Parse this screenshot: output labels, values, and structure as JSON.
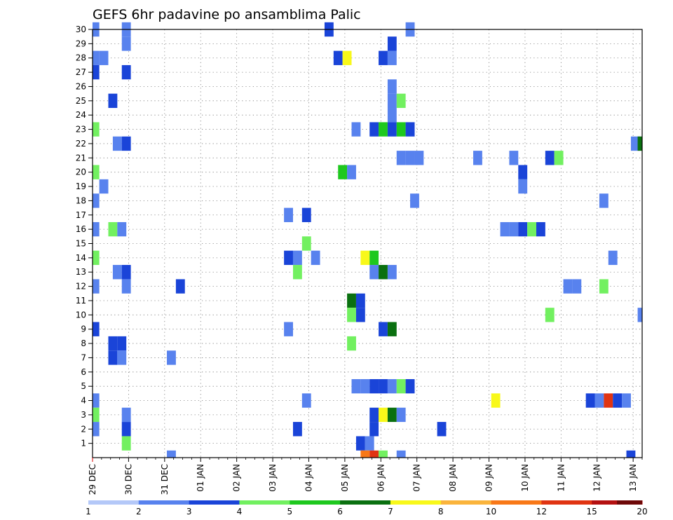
{
  "chart_data": {
    "type": "heatmap",
    "title": "GEFS 6hr padavine po ansamblima Palic",
    "y_ticks": [
      1,
      2,
      3,
      4,
      5,
      6,
      7,
      8,
      9,
      10,
      11,
      12,
      13,
      14,
      15,
      16,
      17,
      18,
      19,
      20,
      21,
      22,
      23,
      24,
      25,
      26,
      27,
      28,
      29,
      30
    ],
    "ylim": [
      0,
      30
    ],
    "x_ticks": [
      "29 DEC",
      "30 DEC",
      "31 DEC",
      "01 JAN",
      "02 JAN",
      "03 JAN",
      "04 JAN",
      "05 JAN",
      "06 JAN",
      "07 JAN",
      "08 JAN",
      "09 JAN",
      "10 JAN",
      "11 JAN",
      "12 JAN",
      "13 JAN"
    ],
    "x_unit": "6-hour steps from 29 DEC 00 UTC",
    "xlim": [
      0,
      61
    ],
    "grid": true,
    "legend": {
      "placement": "bottom",
      "labels": [
        "1",
        "2",
        "3",
        "4",
        "5",
        "6",
        "7",
        "8",
        "10",
        "12",
        "15",
        "20"
      ],
      "colors": [
        "#b4c8f8",
        "#5882ee",
        "#1a44d8",
        "#72f060",
        "#1ec81e",
        "#0a7010",
        "#f8f81a",
        "#fab43c",
        "#f87818",
        "#e03412",
        "#b41010",
        "#6e0808"
      ]
    },
    "levels_note_thresholds": [
      1,
      2,
      3,
      4,
      5,
      6,
      7,
      8,
      10,
      12,
      15,
      20
    ],
    "cells": [
      [
        0.25,
        30,
        1
      ],
      [
        3.75,
        30,
        1
      ],
      [
        26.25,
        30,
        2
      ],
      [
        35.25,
        30,
        1
      ],
      [
        3.75,
        29,
        1
      ],
      [
        33.25,
        29,
        2
      ],
      [
        0.25,
        28,
        1
      ],
      [
        1.25,
        28,
        1
      ],
      [
        27.25,
        28,
        2
      ],
      [
        28.25,
        28,
        6
      ],
      [
        32.25,
        28,
        2
      ],
      [
        33.25,
        28,
        1
      ],
      [
        0.25,
        27,
        2
      ],
      [
        3.75,
        27,
        2
      ],
      [
        33.25,
        26,
        1
      ],
      [
        2.25,
        25,
        2
      ],
      [
        33.25,
        25,
        1
      ],
      [
        34.25,
        25,
        3
      ],
      [
        33.25,
        24,
        1
      ],
      [
        0.25,
        23,
        3
      ],
      [
        29.25,
        23,
        1
      ],
      [
        31.25,
        23,
        2
      ],
      [
        32.25,
        23,
        4
      ],
      [
        33.25,
        23,
        2
      ],
      [
        34.25,
        23,
        4
      ],
      [
        35.25,
        23,
        2
      ],
      [
        2.75,
        22,
        1
      ],
      [
        3.75,
        22,
        2
      ],
      [
        60.25,
        22,
        1
      ],
      [
        61.0,
        22,
        5
      ],
      [
        34.25,
        21,
        1
      ],
      [
        35.25,
        21,
        1
      ],
      [
        36.25,
        21,
        1
      ],
      [
        42.75,
        21,
        1
      ],
      [
        46.75,
        21,
        1
      ],
      [
        50.75,
        21,
        2
      ],
      [
        51.75,
        21,
        3
      ],
      [
        0.25,
        20,
        3
      ],
      [
        27.75,
        20,
        4
      ],
      [
        28.75,
        20,
        1
      ],
      [
        47.75,
        20,
        2
      ],
      [
        1.25,
        19,
        1
      ],
      [
        47.75,
        19,
        1
      ],
      [
        0.25,
        18,
        1
      ],
      [
        35.75,
        18,
        1
      ],
      [
        56.75,
        18,
        1
      ],
      [
        21.75,
        17,
        1
      ],
      [
        23.75,
        17,
        2
      ],
      [
        0.25,
        16,
        1
      ],
      [
        2.25,
        16,
        3
      ],
      [
        3.25,
        16,
        1
      ],
      [
        45.75,
        16,
        1
      ],
      [
        46.75,
        16,
        1
      ],
      [
        47.75,
        16,
        2
      ],
      [
        48.75,
        16,
        3
      ],
      [
        49.75,
        16,
        2
      ],
      [
        23.75,
        15,
        3
      ],
      [
        0.25,
        14,
        3
      ],
      [
        21.75,
        14,
        2
      ],
      [
        22.75,
        14,
        1
      ],
      [
        24.75,
        14,
        1
      ],
      [
        30.25,
        14,
        6
      ],
      [
        31.25,
        14,
        4
      ],
      [
        57.75,
        14,
        1
      ],
      [
        2.75,
        13,
        1
      ],
      [
        3.75,
        13,
        2
      ],
      [
        22.75,
        13,
        3
      ],
      [
        31.25,
        13,
        1
      ],
      [
        32.25,
        13,
        5
      ],
      [
        33.25,
        13,
        1
      ],
      [
        0.25,
        12,
        1
      ],
      [
        3.75,
        12,
        1
      ],
      [
        9.75,
        12,
        2
      ],
      [
        52.75,
        12,
        1
      ],
      [
        53.75,
        12,
        1
      ],
      [
        56.75,
        12,
        3
      ],
      [
        28.75,
        11,
        5
      ],
      [
        29.75,
        11,
        2
      ],
      [
        28.75,
        10,
        3
      ],
      [
        29.75,
        10,
        2
      ],
      [
        50.75,
        10,
        3
      ],
      [
        61.0,
        10,
        1
      ],
      [
        0.25,
        9,
        2
      ],
      [
        21.75,
        9,
        1
      ],
      [
        32.25,
        9,
        2
      ],
      [
        33.25,
        9,
        5
      ],
      [
        2.25,
        8,
        2
      ],
      [
        3.25,
        8,
        2
      ],
      [
        28.75,
        8,
        3
      ],
      [
        2.25,
        7,
        2
      ],
      [
        3.25,
        7,
        1
      ],
      [
        8.75,
        7,
        1
      ],
      [
        29.25,
        5,
        1
      ],
      [
        30.25,
        5,
        1
      ],
      [
        31.25,
        5,
        2
      ],
      [
        32.25,
        5,
        2
      ],
      [
        33.25,
        5,
        1
      ],
      [
        34.25,
        5,
        3
      ],
      [
        35.25,
        5,
        2
      ],
      [
        0.25,
        4,
        1
      ],
      [
        23.75,
        4,
        1
      ],
      [
        44.75,
        4,
        6
      ],
      [
        55.25,
        4,
        2
      ],
      [
        56.25,
        4,
        1
      ],
      [
        57.25,
        4,
        9
      ],
      [
        58.25,
        4,
        2
      ],
      [
        59.25,
        4,
        1
      ],
      [
        0.25,
        3,
        3
      ],
      [
        3.75,
        3,
        1
      ],
      [
        31.25,
        3,
        2
      ],
      [
        32.25,
        3,
        6
      ],
      [
        33.25,
        3,
        5
      ],
      [
        34.25,
        3,
        1
      ],
      [
        0.25,
        2,
        1
      ],
      [
        3.75,
        2,
        2
      ],
      [
        22.75,
        2,
        2
      ],
      [
        31.25,
        2,
        2
      ],
      [
        38.75,
        2,
        2
      ],
      [
        3.75,
        1,
        3
      ],
      [
        29.75,
        1,
        2
      ],
      [
        30.75,
        1,
        1
      ],
      [
        8.75,
        0,
        1
      ],
      [
        30.25,
        0,
        8
      ],
      [
        31.25,
        0,
        9
      ],
      [
        32.25,
        0,
        3
      ],
      [
        34.25,
        0,
        1
      ],
      [
        59.75,
        0,
        2
      ]
    ]
  }
}
